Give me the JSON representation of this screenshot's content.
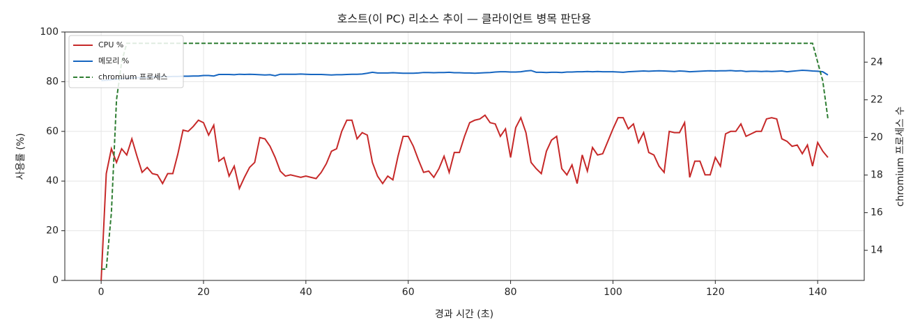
{
  "chart_data": {
    "type": "line",
    "title": "호스트(이 PC) 리소스 추이 — 클라이언트 병목 판단용",
    "x_label": "경과 시간 (초)",
    "y_label": "사용률 (%)",
    "y2_label": "chromium 프로세스 수",
    "x": [
      0,
      1,
      2,
      3,
      4,
      5,
      6,
      7,
      8,
      9,
      10,
      11,
      12,
      13,
      14,
      15,
      16,
      17,
      18,
      19,
      20,
      21,
      22,
      23,
      24,
      25,
      26,
      27,
      28,
      29,
      30,
      31,
      32,
      33,
      34,
      35,
      36,
      37,
      38,
      39,
      40,
      41,
      42,
      43,
      44,
      45,
      46,
      47,
      48,
      49,
      50,
      51,
      52,
      53,
      54,
      55,
      56,
      57,
      58,
      59,
      60,
      61,
      62,
      63,
      64,
      65,
      66,
      67,
      68,
      69,
      70,
      71,
      72,
      73,
      74,
      75,
      76,
      77,
      78,
      79,
      80,
      81,
      82,
      83,
      84,
      85,
      86,
      87,
      88,
      89,
      90,
      91,
      92,
      93,
      94,
      95,
      96,
      97,
      98,
      99,
      100,
      101,
      102,
      103,
      104,
      105,
      106,
      107,
      108,
      109,
      110,
      111,
      112,
      113,
      114,
      115,
      116,
      117,
      118,
      119,
      120,
      121,
      122,
      123,
      124,
      125,
      126,
      127,
      128,
      129,
      130,
      131,
      132,
      133,
      134,
      135,
      136,
      137,
      138,
      139,
      140,
      141,
      142
    ],
    "series": [
      {
        "name": "CPU %",
        "color": "#c62828",
        "linestyle": "solid",
        "values": [
          0,
          43,
          53,
          47.5,
          53,
          50.5,
          57,
          50,
          43.5,
          45.5,
          43,
          42.5,
          39,
          43,
          43,
          51,
          60.5,
          60,
          62,
          64.5,
          63.5,
          58.5,
          62.5,
          48,
          49.5,
          42,
          46,
          37,
          41.5,
          45.5,
          47.5,
          57.5,
          57,
          54,
          49.5,
          44,
          42,
          42.5,
          42,
          41.5,
          42,
          41.5,
          41,
          43.5,
          47,
          52,
          53,
          60,
          64.5,
          64.5,
          57,
          59.5,
          58.5,
          47.5,
          42,
          39,
          42,
          40.5,
          50,
          58,
          58,
          54,
          48.5,
          43.5,
          44,
          41.5,
          45,
          50,
          43.5,
          51.5,
          51.5,
          58,
          63.5,
          64.5,
          65,
          66.5,
          63.5,
          63,
          58,
          61,
          49.5,
          61.5,
          65.5,
          59.5,
          47.5,
          45,
          43,
          52,
          56.5,
          58,
          45,
          42.5,
          46.5,
          39,
          50.5,
          44,
          53.5,
          50.5,
          51,
          56,
          61,
          65.5,
          65.5,
          61,
          63,
          55.5,
          59.5,
          51.5,
          50.5,
          46,
          43.5,
          60,
          59.5,
          59.5,
          63.5,
          41.5,
          48,
          48,
          42.5,
          42.5,
          49.5,
          46,
          59,
          60,
          60,
          63,
          58,
          59,
          60,
          60,
          65,
          65.5,
          65,
          57,
          56,
          54,
          54.5,
          51,
          54.5,
          46,
          55.5,
          52,
          49.5
        ]
      },
      {
        "name": "메모리 %",
        "color": "#1565c0",
        "linestyle": "solid",
        "values": [
          80.5,
          80.6,
          80.8,
          81,
          81.2,
          81.4,
          81.5,
          81.6,
          81.7,
          81.8,
          81.9,
          82,
          82,
          82,
          82.1,
          82.1,
          82.2,
          82.2,
          82.3,
          82.3,
          82.5,
          82.5,
          82.3,
          82.9,
          82.9,
          82.9,
          82.8,
          83,
          82.9,
          83,
          82.9,
          82.8,
          82.7,
          82.8,
          82.4,
          83,
          83,
          83,
          83,
          83.1,
          83,
          82.9,
          82.9,
          82.9,
          82.8,
          82.7,
          82.8,
          82.8,
          82.9,
          83,
          83,
          83.1,
          83.4,
          83.8,
          83.5,
          83.5,
          83.5,
          83.6,
          83.5,
          83.4,
          83.4,
          83.4,
          83.5,
          83.7,
          83.7,
          83.6,
          83.7,
          83.7,
          83.8,
          83.6,
          83.6,
          83.5,
          83.5,
          83.4,
          83.5,
          83.6,
          83.7,
          83.9,
          84,
          84,
          83.9,
          83.9,
          84,
          84.3,
          84.5,
          83.8,
          83.8,
          83.7,
          83.8,
          83.8,
          83.7,
          83.9,
          83.9,
          84,
          84,
          84.1,
          84,
          84.1,
          84,
          84,
          84,
          83.9,
          83.8,
          84,
          84.1,
          84.2,
          84.3,
          84.2,
          84.3,
          84.4,
          84.3,
          84.2,
          84.1,
          84.3,
          84.2,
          84,
          84.1,
          84.2,
          84.3,
          84.4,
          84.3,
          84.4,
          84.4,
          84.5,
          84.3,
          84.4,
          84.1,
          84.2,
          84.2,
          84.1,
          84.2,
          84.1,
          84.2,
          84.3,
          84,
          84.2,
          84.4,
          84.6,
          84.5,
          84.3,
          84.2,
          84,
          82.7
        ]
      },
      {
        "name": "chromium 프로세스",
        "color": "#2e7d32",
        "linestyle": "dashed",
        "axis": "y2",
        "values": [
          13,
          13,
          16,
          22,
          24,
          25,
          25,
          25,
          25,
          25,
          25,
          25,
          25,
          25,
          25,
          25,
          25,
          25,
          25,
          25,
          25,
          25,
          25,
          25,
          25,
          25,
          25,
          25,
          25,
          25,
          25,
          25,
          25,
          25,
          25,
          25,
          25,
          25,
          25,
          25,
          25,
          25,
          25,
          25,
          25,
          25,
          25,
          25,
          25,
          25,
          25,
          25,
          25,
          25,
          25,
          25,
          25,
          25,
          25,
          25,
          25,
          25,
          25,
          25,
          25,
          25,
          25,
          25,
          25,
          25,
          25,
          25,
          25,
          25,
          25,
          25,
          25,
          25,
          25,
          25,
          25,
          25,
          25,
          25,
          25,
          25,
          25,
          25,
          25,
          25,
          25,
          25,
          25,
          25,
          25,
          25,
          25,
          25,
          25,
          25,
          25,
          25,
          25,
          25,
          25,
          25,
          25,
          25,
          25,
          25,
          25,
          25,
          25,
          25,
          25,
          25,
          25,
          25,
          25,
          25,
          25,
          25,
          25,
          25,
          25,
          25,
          25,
          25,
          25,
          25,
          25,
          25,
          25,
          25,
          25,
          25,
          25,
          25,
          25,
          25,
          24,
          23,
          21
        ]
      }
    ],
    "xlim": [
      -7.1,
      149.1
    ],
    "xticks": [
      0,
      20,
      40,
      60,
      80,
      100,
      120,
      140
    ],
    "ylim": [
      0,
      100
    ],
    "yticks": [
      0,
      20,
      40,
      60,
      80,
      100
    ],
    "y2lim": [
      12.4,
      25.6
    ],
    "y2ticks": [
      14,
      16,
      18,
      20,
      22,
      24
    ],
    "grid": true,
    "legend": "upper left"
  }
}
